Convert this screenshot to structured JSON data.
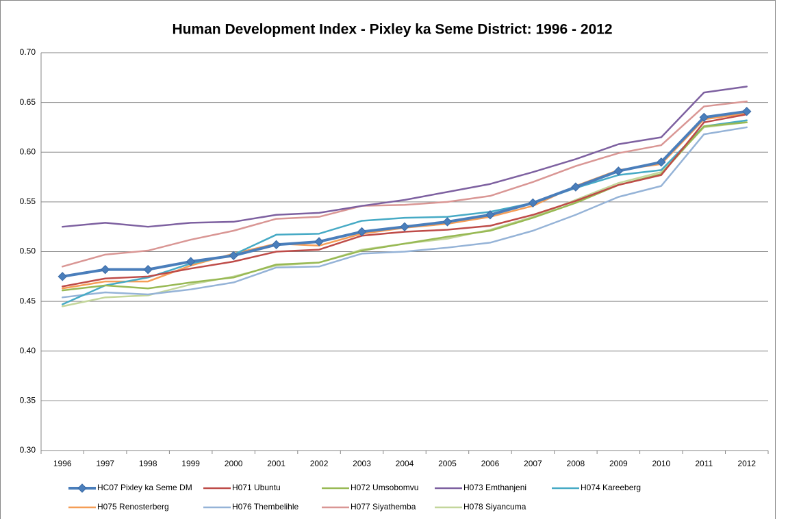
{
  "chart_data": {
    "type": "line",
    "title": "Human Development Index - Pixley ka Seme District: 1996 - 2012",
    "categories": [
      "1996",
      "1997",
      "1998",
      "1999",
      "2000",
      "2001",
      "2002",
      "2003",
      "2004",
      "2005",
      "2006",
      "2007",
      "2008",
      "2009",
      "2010",
      "2011",
      "2012"
    ],
    "ylim": [
      0.3,
      0.7
    ],
    "yticks": [
      {
        "value": 0.3,
        "label": "0.30"
      },
      {
        "value": 0.35,
        "label": "0.35"
      },
      {
        "value": 0.4,
        "label": "0.40"
      },
      {
        "value": 0.45,
        "label": "0.45"
      },
      {
        "value": 0.5,
        "label": "0.50"
      },
      {
        "value": 0.55,
        "label": "0.55"
      },
      {
        "value": 0.6,
        "label": "0.60"
      },
      {
        "value": 0.65,
        "label": "0.65"
      },
      {
        "value": 0.7,
        "label": "0.70"
      }
    ],
    "grid": true,
    "legend": "bottom",
    "series": [
      {
        "name": "HC07 Pixley ka Seme DM",
        "color": "#4a7ebb",
        "marker": "diamond",
        "values": [
          0.475,
          0.482,
          0.482,
          0.49,
          0.496,
          0.507,
          0.51,
          0.52,
          0.525,
          0.53,
          0.537,
          0.549,
          0.565,
          0.581,
          0.59,
          0.635,
          0.641
        ]
      },
      {
        "name": "H071 Ubuntu",
        "color": "#be4b48",
        "values": [
          0.465,
          0.473,
          0.475,
          0.483,
          0.49,
          0.5,
          0.502,
          0.516,
          0.52,
          0.522,
          0.526,
          0.537,
          0.551,
          0.567,
          0.577,
          0.63,
          0.638
        ]
      },
      {
        "name": "H072 Umsobomvu",
        "color": "#98b954",
        "values": [
          0.461,
          0.466,
          0.463,
          0.469,
          0.474,
          0.487,
          0.489,
          0.501,
          0.508,
          0.515,
          0.521,
          0.534,
          0.549,
          0.567,
          0.578,
          0.626,
          0.63
        ]
      },
      {
        "name": "H073 Emthanjeni",
        "color": "#7d60a0",
        "values": [
          0.525,
          0.529,
          0.525,
          0.529,
          0.53,
          0.537,
          0.539,
          0.546,
          0.552,
          0.56,
          0.568,
          0.58,
          0.593,
          0.608,
          0.615,
          0.66,
          0.666
        ]
      },
      {
        "name": "H074 Kareeberg",
        "color": "#46aac5",
        "values": [
          0.447,
          0.466,
          0.474,
          0.488,
          0.497,
          0.517,
          0.518,
          0.531,
          0.534,
          0.535,
          0.54,
          0.549,
          0.564,
          0.577,
          0.582,
          0.626,
          0.632
        ]
      },
      {
        "name": "H075 Renosterberg",
        "color": "#f59d56",
        "values": [
          0.463,
          0.47,
          0.47,
          0.486,
          0.498,
          0.508,
          0.506,
          0.518,
          0.524,
          0.528,
          0.535,
          0.546,
          0.566,
          0.582,
          0.588,
          0.633,
          0.639
        ]
      },
      {
        "name": "H076 Thembelihle",
        "color": "#95b3d7",
        "values": [
          0.454,
          0.459,
          0.457,
          0.462,
          0.469,
          0.484,
          0.485,
          0.498,
          0.5,
          0.504,
          0.509,
          0.521,
          0.537,
          0.555,
          0.566,
          0.618,
          0.625
        ]
      },
      {
        "name": "H077 Siyathemba",
        "color": "#d99694",
        "values": [
          0.485,
          0.497,
          0.501,
          0.512,
          0.521,
          0.533,
          0.535,
          0.546,
          0.547,
          0.55,
          0.556,
          0.57,
          0.586,
          0.599,
          0.607,
          0.646,
          0.651
        ]
      },
      {
        "name": "H078 Siyancuma",
        "color": "#c3d69b",
        "values": [
          0.445,
          0.454,
          0.456,
          0.467,
          0.475,
          0.486,
          0.489,
          0.502,
          0.508,
          0.513,
          0.522,
          0.535,
          0.552,
          0.569,
          0.58,
          0.625,
          0.63
        ]
      }
    ]
  }
}
